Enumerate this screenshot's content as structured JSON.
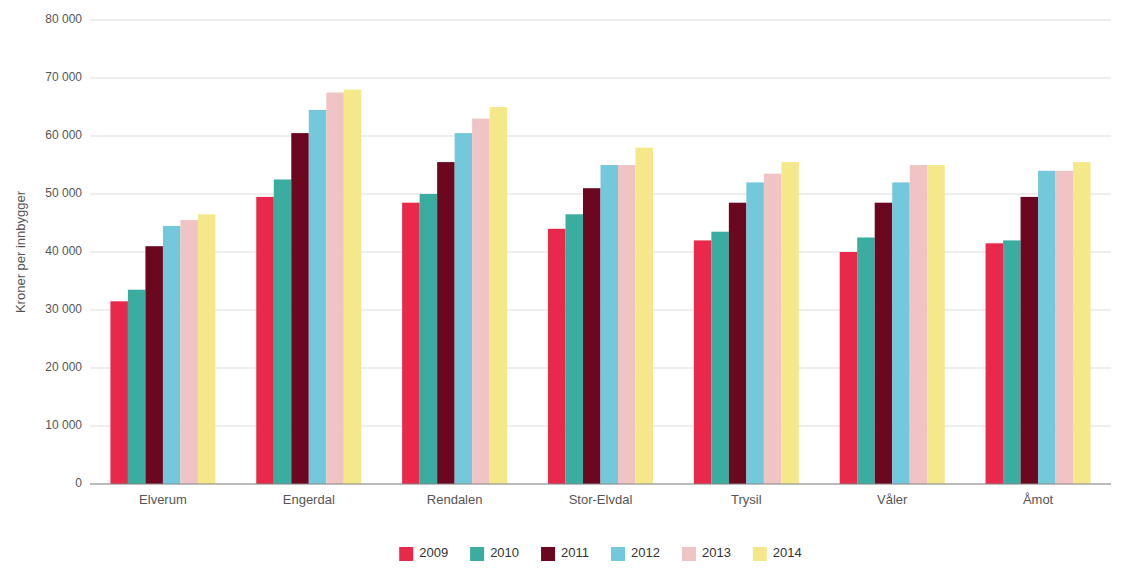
{
  "chart_data": {
    "type": "bar",
    "categories": [
      "Elverum",
      "Engerdal",
      "Rendalen",
      "Stor-Elvdal",
      "Trysil",
      "Våler",
      "Åmot"
    ],
    "series": [
      {
        "name": "2009",
        "color": "#E8294B",
        "values": [
          31500,
          49500,
          48500,
          44000,
          42000,
          40000,
          41500
        ]
      },
      {
        "name": "2010",
        "color": "#3AACA0",
        "values": [
          33500,
          52500,
          50000,
          46500,
          43500,
          42500,
          42000
        ]
      },
      {
        "name": "2011",
        "color": "#6B0820",
        "values": [
          41000,
          60500,
          55500,
          51000,
          48500,
          48500,
          49500
        ]
      },
      {
        "name": "2012",
        "color": "#74C8DC",
        "values": [
          44500,
          64500,
          60500,
          55000,
          52000,
          52000,
          54000
        ]
      },
      {
        "name": "2013",
        "color": "#F0C4C4",
        "values": [
          45500,
          67500,
          63000,
          55000,
          53500,
          55000,
          54000
        ]
      },
      {
        "name": "2014",
        "color": "#F5E88A",
        "values": [
          46500,
          68000,
          65000,
          58000,
          55500,
          55000,
          55500
        ]
      }
    ],
    "ylabel": "Kroner per innbygger",
    "ylim": [
      0,
      80000
    ],
    "yticks": [
      0,
      {
        "value": 10000,
        "label": "10 000"
      },
      {
        "value": 20000,
        "label": "20 000"
      },
      {
        "value": 30000,
        "label": "30 000"
      },
      {
        "value": 40000,
        "label": "40 000"
      },
      {
        "value": 50000,
        "label": "50 000"
      },
      {
        "value": 60000,
        "label": "60 000"
      },
      {
        "value": 70000,
        "label": "70 000"
      },
      {
        "value": 80000,
        "label": "80 000"
      }
    ],
    "grid": true,
    "legend": "bottom"
  }
}
